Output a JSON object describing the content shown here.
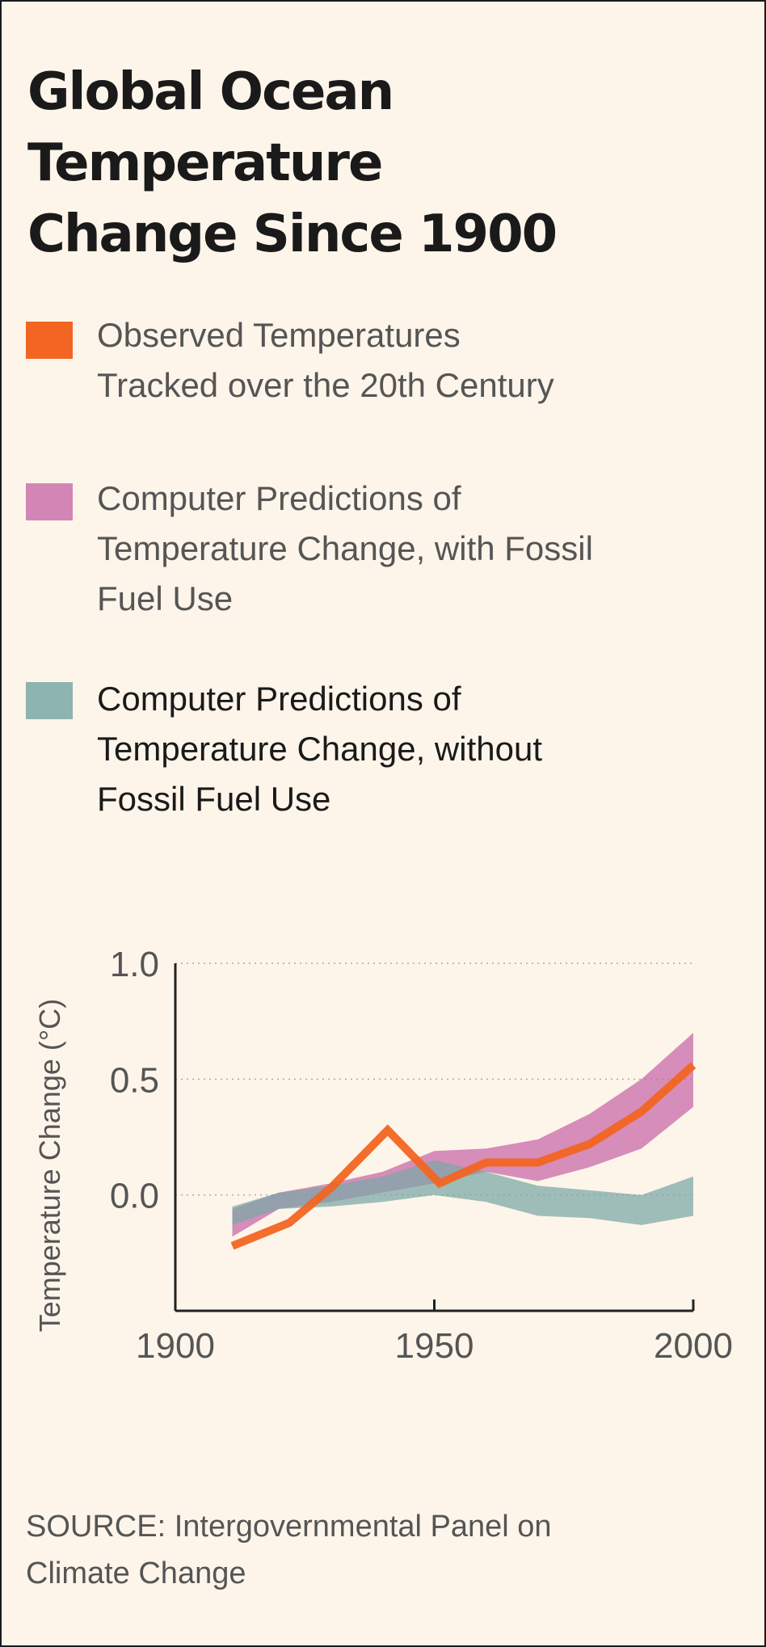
{
  "title": [
    "Global Ocean Temperature",
    "Change Since 1900"
  ],
  "colors": {
    "observed": "#f26522",
    "with_fossil": "#c86aa8",
    "without_fossil": "#7aa8a5"
  },
  "legend": [
    {
      "lines": [
        "Observed Temperatures",
        "Tracked over the 20th Century"
      ]
    },
    {
      "lines": [
        "Computer Predictions of",
        "Temperature Change, with Fossil",
        "Fuel Use"
      ]
    },
    {
      "lines": [
        "Computer Predictions of",
        "Temperature Change, without",
        "Fossil Fuel Use"
      ]
    }
  ],
  "source": [
    "SOURCE: Intergovernmental Panel on",
    "Climate Change"
  ],
  "chart_data": {
    "type": "line",
    "ylabel": "Temperature Change (°C)",
    "xlabel": "",
    "xlim": [
      1900,
      2000
    ],
    "ylim": [
      -0.5,
      1.0
    ],
    "x_ticks": [
      "1900",
      "1950",
      "2000"
    ],
    "y_ticks": [
      "1.0",
      "0.5",
      "0.0"
    ],
    "grid": "dotted horizontal at tick values",
    "series": [
      {
        "name": "Observed Temperatures Tracked over the 20th Century",
        "kind": "line",
        "x": [
          1911,
          1922,
          1930,
          1941,
          1951,
          1960,
          1970,
          1980,
          1990,
          2000
        ],
        "y": [
          -0.22,
          -0.12,
          0.03,
          0.28,
          0.05,
          0.14,
          0.14,
          0.22,
          0.36,
          0.56
        ]
      },
      {
        "name": "Computer Predictions of Temperature Change, with Fossil Fuel Use",
        "kind": "band",
        "x": [
          1911,
          1920,
          1930,
          1940,
          1950,
          1960,
          1970,
          1980,
          1990,
          2000
        ],
        "lower": [
          -0.18,
          -0.06,
          -0.03,
          0.01,
          0.05,
          0.1,
          0.06,
          0.12,
          0.2,
          0.38
        ],
        "upper": [
          -0.06,
          0.01,
          0.05,
          0.1,
          0.19,
          0.2,
          0.24,
          0.35,
          0.5,
          0.7
        ]
      },
      {
        "name": "Computer Predictions of Temperature Change, without Fossil Fuel Use",
        "kind": "band",
        "x": [
          1911,
          1920,
          1930,
          1940,
          1950,
          1960,
          1970,
          1980,
          1990,
          2000
        ],
        "lower": [
          -0.13,
          -0.06,
          -0.05,
          -0.03,
          0.0,
          -0.03,
          -0.09,
          -0.1,
          -0.13,
          -0.09
        ],
        "upper": [
          -0.05,
          0.01,
          0.04,
          0.08,
          0.15,
          0.1,
          0.04,
          0.02,
          0.0,
          0.08
        ]
      }
    ]
  }
}
